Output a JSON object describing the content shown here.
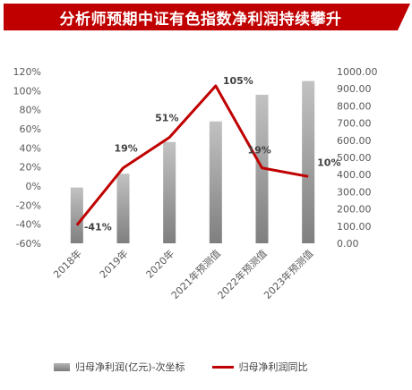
{
  "title": "分析师预期中证有色指数净利润持续攀升",
  "colors": {
    "title_bg": "#c00000",
    "line": "#c00000",
    "bar_top": "#c2c2c2",
    "bar_bottom": "#7f7f7f"
  },
  "chart_data": {
    "type": "bar+line",
    "categories": [
      "2018年",
      "2019年",
      "2020年",
      "2021年预测值",
      "2022年预测值",
      "2023年预测值"
    ],
    "bar_series": {
      "name": "归母净利润(亿元)-次坐标",
      "axis": "right",
      "values": [
        325,
        405,
        590,
        710,
        865,
        945
      ]
    },
    "line_series": {
      "name": "归母净利润同比",
      "axis": "left",
      "values": [
        -41,
        19,
        51,
        105,
        19,
        10
      ]
    },
    "line_labels": [
      "-41%",
      "19%",
      "51%",
      "105%",
      "19%",
      "10%"
    ],
    "left_axis": {
      "ticks": [
        "120%",
        "100%",
        "80%",
        "60%",
        "40%",
        "20%",
        "0%",
        "-20%",
        "-40%",
        "-60%"
      ],
      "range": [
        -60,
        120
      ]
    },
    "right_axis": {
      "ticks": [
        "1000.00",
        "900.00",
        "800.00",
        "700.00",
        "600.00",
        "500.00",
        "400.00",
        "300.00",
        "200.00",
        "100.00",
        "0.00"
      ],
      "range": [
        0,
        1000
      ]
    },
    "legend_position": "bottom",
    "grid": false
  }
}
